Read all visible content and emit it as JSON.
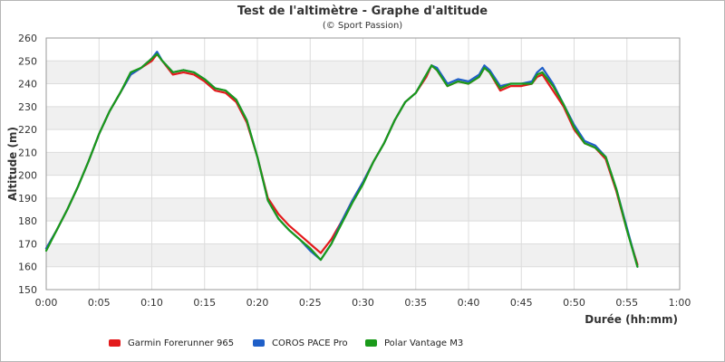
{
  "chart_data": {
    "type": "line",
    "title": "Test de l'altimètre - Graphe d'altitude",
    "subtitle": "(© Sport Passion)",
    "xlabel": "Durée (hh:mm)",
    "ylabel": "Altitude (m)",
    "x_unit": "minutes",
    "xlim": [
      0,
      60
    ],
    "ylim": [
      150,
      260
    ],
    "x_ticks": [
      0,
      5,
      10,
      15,
      20,
      25,
      30,
      35,
      40,
      45,
      50,
      55,
      60
    ],
    "x_tick_labels": [
      "0:00",
      "0:05",
      "0:10",
      "0:15",
      "0:20",
      "0:25",
      "0:30",
      "0:35",
      "0:40",
      "0:45",
      "0:50",
      "0:55",
      "1:00"
    ],
    "y_ticks": [
      150,
      160,
      170,
      180,
      190,
      200,
      210,
      220,
      230,
      240,
      250,
      260
    ],
    "y_tick_labels": [
      "150",
      "160",
      "170",
      "180",
      "190",
      "200",
      "210",
      "220",
      "230",
      "240",
      "250",
      "260"
    ],
    "grid": true,
    "legend_position": "bottom",
    "series": [
      {
        "name": "Garmin Forerunner 965",
        "color": "#e31a1c",
        "x": [
          0,
          1,
          2,
          3,
          4,
          5,
          6,
          7,
          8,
          9,
          10,
          10.5,
          11,
          12,
          13,
          14,
          15,
          16,
          17,
          18,
          19,
          20,
          21,
          22,
          23,
          24,
          25,
          26,
          27,
          28,
          29,
          30,
          31,
          32,
          33,
          34,
          35,
          36,
          36.5,
          37,
          38,
          39,
          40,
          41,
          41.5,
          42,
          43,
          44,
          45,
          46,
          46.5,
          47,
          48,
          49,
          50,
          51,
          52,
          53,
          54,
          55,
          56
        ],
        "values": [
          168,
          176,
          185,
          195,
          206,
          218,
          228,
          236,
          244,
          247,
          250,
          253,
          250,
          244,
          245,
          244,
          241,
          237,
          236,
          232,
          223,
          208,
          190,
          183,
          178,
          174,
          170,
          166,
          172,
          180,
          189,
          197,
          206,
          214,
          224,
          232,
          236,
          243,
          248,
          246,
          239,
          241,
          240,
          243,
          247,
          245,
          237,
          239,
          239,
          240,
          243,
          244,
          237,
          230,
          220,
          214,
          212,
          207,
          193,
          176,
          161
        ]
      },
      {
        "name": "COROS PACE Pro",
        "color": "#1f5fc8",
        "x": [
          0,
          1,
          2,
          3,
          4,
          5,
          6,
          7,
          8,
          9,
          10,
          10.5,
          11,
          12,
          13,
          14,
          15,
          16,
          17,
          18,
          19,
          20,
          21,
          22,
          23,
          24,
          25,
          26,
          27,
          28,
          29,
          30,
          31,
          32,
          33,
          34,
          35,
          36,
          36.5,
          37,
          38,
          39,
          40,
          41,
          41.5,
          42,
          43,
          44,
          45,
          46,
          46.5,
          47,
          48,
          49,
          50,
          51,
          52,
          53,
          54,
          55,
          56
        ],
        "values": [
          168,
          176,
          185,
          195,
          206,
          218,
          228,
          236,
          244,
          247,
          251,
          254,
          250,
          245,
          246,
          245,
          242,
          238,
          237,
          233,
          224,
          208,
          189,
          181,
          176,
          172,
          167,
          163,
          170,
          180,
          189,
          197,
          206,
          214,
          224,
          232,
          236,
          244,
          248,
          247,
          240,
          242,
          241,
          244,
          248,
          246,
          239,
          240,
          240,
          241,
          245,
          247,
          240,
          231,
          222,
          215,
          213,
          208,
          194,
          177,
          160
        ]
      },
      {
        "name": "Polar Vantage M3",
        "color": "#1a9a1a",
        "x": [
          0,
          1,
          2,
          3,
          4,
          5,
          6,
          7,
          8,
          9,
          10,
          10.5,
          11,
          12,
          13,
          14,
          15,
          16,
          17,
          18,
          19,
          20,
          21,
          22,
          23,
          24,
          25,
          26,
          27,
          28,
          29,
          30,
          31,
          32,
          33,
          34,
          35,
          36,
          36.5,
          37,
          38,
          39,
          40,
          41,
          41.5,
          42,
          43,
          44,
          45,
          46,
          46.5,
          47,
          48,
          49,
          50,
          51,
          52,
          53,
          54,
          55,
          56
        ],
        "values": [
          167,
          176,
          185,
          195,
          206,
          218,
          228,
          236,
          245,
          247,
          251,
          253,
          250,
          245,
          246,
          245,
          242,
          238,
          237,
          233,
          224,
          208,
          189,
          181,
          176,
          172,
          168,
          163,
          170,
          179,
          188,
          196,
          206,
          214,
          224,
          232,
          236,
          244,
          248,
          246,
          239,
          241,
          240,
          243,
          247,
          245,
          238,
          240,
          240,
          240,
          244,
          245,
          239,
          231,
          221,
          214,
          212,
          208,
          194,
          176,
          160
        ]
      }
    ]
  }
}
